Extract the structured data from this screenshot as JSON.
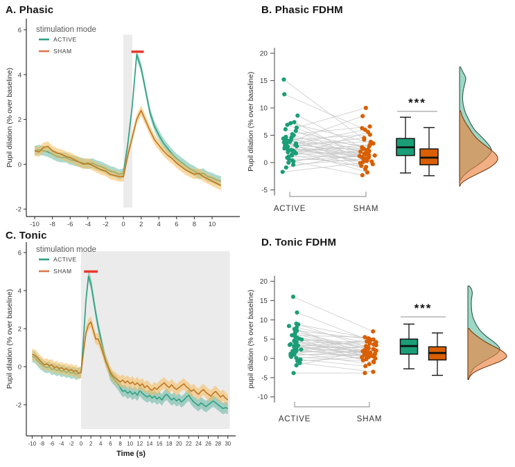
{
  "figure_colors": {
    "active": "#1b9e77",
    "sham": "#d95f02",
    "active_line": "#2fa183",
    "sham_line": "#bd7a26",
    "active_ribbon": "rgba(47,161,131,0.4)",
    "sham_ribbon": "rgba(248,185,88,0.55)",
    "active_density_fill": "rgba(77,183,150,0.55)",
    "sham_density_fill": "rgba(235,126,56,0.62)",
    "active_density_stroke": "#32584c",
    "sham_density_stroke": "#7c3a10",
    "significance_red": "#e8372c",
    "stimulus_band": "#e8e8e8",
    "pair_line": "#c7c7c7",
    "axis": "#2b2b2b",
    "tick_text": "#3c3c3c",
    "legend_title_text": "#595959",
    "sig_line_gray": "#b3b3b3"
  },
  "chart_data": [
    {
      "id": "A",
      "type": "line",
      "title": "A. Phasic",
      "xlabel": "Time (s)",
      "ylabel": "Pupil dilation (% over baseline)",
      "legend_title": "stimulation mode",
      "xticks": [
        -10,
        -8,
        -6,
        -4,
        -2,
        0,
        2,
        4,
        6,
        8,
        10
      ],
      "yticks": [
        -2,
        0,
        2,
        4,
        6
      ],
      "xlim": [
        -10.9,
        13.1
      ],
      "ylim": [
        -2.35,
        6.3
      ],
      "x_start": -10,
      "x_step": 0.5,
      "stim_band": {
        "x0": 0,
        "x1": 1,
        "vtop": 5.78,
        "vbot": -1.93
      },
      "sig_bar": {
        "x0": 0.9,
        "x1": 2.3,
        "y": 5.02
      },
      "series": [
        {
          "name": "ACTIVE",
          "ribbon": 0.22,
          "y": [
            0.6,
            0.65,
            0.6,
            0.55,
            0.45,
            0.35,
            0.3,
            0.3,
            0.2,
            0.15,
            0.1,
            0.05,
            0.0,
            0.05,
            -0.05,
            -0.1,
            -0.2,
            -0.3,
            -0.35,
            -0.45,
            -0.4,
            0.9,
            2.6,
            4.9,
            4.3,
            3.3,
            2.3,
            1.7,
            1.3,
            0.95,
            0.7,
            0.45,
            0.25,
            0.1,
            -0.05,
            -0.2,
            -0.3,
            -0.45,
            -0.4,
            -0.55,
            -0.6,
            -0.7,
            -0.75
          ]
        },
        {
          "name": "SHAM",
          "ribbon": 0.22,
          "y": [
            0.6,
            0.55,
            0.75,
            0.8,
            0.6,
            0.5,
            0.45,
            0.35,
            0.3,
            0.2,
            0.1,
            0.0,
            0.05,
            -0.05,
            -0.15,
            -0.25,
            -0.3,
            -0.45,
            -0.5,
            -0.55,
            -0.55,
            0.4,
            1.2,
            2.0,
            2.4,
            1.95,
            1.5,
            1.1,
            0.85,
            0.6,
            0.4,
            0.25,
            0.05,
            -0.1,
            -0.25,
            -0.35,
            -0.45,
            -0.4,
            -0.55,
            -0.65,
            -0.75,
            -0.85,
            -0.95
          ]
        }
      ]
    },
    {
      "id": "B",
      "type": "paired_raincloud",
      "title": "B. Phasic FDHM",
      "ylabel": "Pupil dilation (% over baseline)",
      "yticks": [
        -5,
        0,
        5,
        10,
        15,
        20
      ],
      "groups": [
        {
          "name": "ACTIVE",
          "values": [
            15.2,
            12.5,
            8.6,
            7.4,
            7.2,
            6.9,
            6.4,
            6.1,
            5.8,
            5.2,
            5.0,
            4.7,
            4.6,
            4.4,
            4.2,
            4.1,
            4.0,
            3.8,
            3.7,
            3.6,
            3.5,
            3.4,
            3.2,
            3.1,
            3.0,
            2.9,
            2.8,
            2.6,
            2.5,
            2.3,
            2.2,
            2.0,
            1.9,
            1.7,
            1.5,
            1.3,
            1.1,
            0.9,
            0.7,
            0.4,
            0.2,
            0.0,
            -0.4,
            -0.9,
            -1.7
          ],
          "box": {
            "lo": -1.9,
            "q1": 1.3,
            "med": 2.8,
            "q3": 4.4,
            "hi": 8.3
          },
          "density": [
            [
              17.5,
              1
            ],
            [
              16.5,
              4
            ],
            [
              15.5,
              7
            ],
            [
              14.5,
              6
            ],
            [
              13,
              4
            ],
            [
              11.5,
              3.5
            ],
            [
              10,
              5
            ],
            [
              9,
              7
            ],
            [
              8,
              10
            ],
            [
              7,
              13
            ],
            [
              6,
              17
            ],
            [
              5,
              23
            ],
            [
              4,
              29
            ],
            [
              3,
              34
            ],
            [
              2.2,
              36
            ],
            [
              1.5,
              34
            ],
            [
              0.5,
              28
            ],
            [
              -0.5,
              20
            ],
            [
              -1.5,
              11
            ],
            [
              -2.5,
              4
            ],
            [
              -3.2,
              1
            ]
          ]
        },
        {
          "name": "SHAM",
          "values": [
            4.2,
            6.3,
            2.1,
            0.8,
            3.5,
            1.6,
            10.0,
            2.8,
            0.3,
            6.6,
            1.2,
            3.0,
            -0.6,
            2.4,
            5.1,
            0.6,
            1.9,
            8.5,
            1.4,
            -1.2,
            3.8,
            0.1,
            2.2,
            6.0,
            1.0,
            -0.3,
            4.5,
            1.8,
            0.9,
            2.6,
            -1.8,
            1.5,
            3.3,
            0.4,
            2.0,
            -0.8,
            1.1,
            5.6,
            0.2,
            1.3,
            -2.3,
            2.5,
            0.7,
            1.7,
            -0.1
          ],
          "box": {
            "lo": -2.4,
            "q1": -0.4,
            "med": 0.9,
            "q3": 2.5,
            "hi": 6.4
          },
          "density": [
            [
              9.5,
              1
            ],
            [
              8.5,
              3
            ],
            [
              7.5,
              6
            ],
            [
              6.5,
              10
            ],
            [
              5.5,
              14
            ],
            [
              4.5,
              19
            ],
            [
              3.5,
              26
            ],
            [
              2.5,
              34
            ],
            [
              1.5,
              41
            ],
            [
              0.8,
              43
            ],
            [
              0,
              41
            ],
            [
              -1,
              33
            ],
            [
              -2,
              21
            ],
            [
              -3,
              9
            ],
            [
              -3.8,
              2
            ],
            [
              -4.3,
              0.5
            ]
          ]
        }
      ],
      "significance": "***"
    },
    {
      "id": "C",
      "type": "line",
      "title": "C. Tonic",
      "xlabel": "Time (s)",
      "ylabel": "Pupil dilation (% over baseline)",
      "legend_title": "stimulation mode",
      "xticks": [
        -10,
        -8,
        -6,
        -4,
        -2,
        0,
        2,
        4,
        6,
        8,
        10,
        12,
        14,
        16,
        18,
        20,
        22,
        24,
        26,
        28,
        30
      ],
      "yticks": [
        -2,
        0,
        2,
        4,
        6
      ],
      "xlim": [
        -11.2,
        31.6
      ],
      "ylim": [
        -3.64,
        6.35
      ],
      "x_start": -10,
      "x_step": 0.5,
      "stim_band": {
        "x0": 0,
        "x1": 30.4,
        "vtop": 6.07,
        "vbot": -3.27
      },
      "sig_bar": {
        "x0": 0.6,
        "x1": 3.4,
        "y": 5.0
      },
      "series": [
        {
          "name": "ACTIVE",
          "ribbon": 0.3,
          "y": [
            0.55,
            0.5,
            0.35,
            0.2,
            0.1,
            0.0,
            -0.05,
            0.0,
            -0.15,
            -0.1,
            -0.2,
            -0.15,
            -0.25,
            -0.2,
            -0.3,
            -0.25,
            -0.35,
            -0.3,
            -0.4,
            -0.35,
            -0.3,
            1.5,
            3.5,
            4.75,
            4.4,
            3.6,
            2.8,
            2.1,
            1.5,
            0.9,
            0.35,
            0.0,
            -0.45,
            -0.6,
            -0.75,
            -0.9,
            -1.1,
            -1.3,
            -1.25,
            -1.4,
            -1.3,
            -1.45,
            -1.35,
            -1.5,
            -1.25,
            -1.4,
            -1.5,
            -1.6,
            -1.5,
            -1.65,
            -1.55,
            -1.7,
            -1.6,
            -1.75,
            -1.55,
            -1.45,
            -1.6,
            -1.75,
            -1.65,
            -1.8,
            -1.7,
            -1.85,
            -1.75,
            -1.6,
            -1.5,
            -1.7,
            -1.85,
            -1.95,
            -2.05,
            -1.9,
            -2.0,
            -2.1,
            -2.0,
            -1.9,
            -1.8,
            -1.9,
            -2.0,
            -2.1,
            -2.2,
            -2.15,
            -2.2
          ]
        },
        {
          "name": "SHAM",
          "ribbon": 0.3,
          "y": [
            0.65,
            0.6,
            0.5,
            0.35,
            0.2,
            0.1,
            0.15,
            0.05,
            0.1,
            -0.05,
            0.0,
            -0.1,
            -0.05,
            -0.15,
            -0.1,
            -0.2,
            -0.15,
            -0.25,
            -0.2,
            -0.35,
            -0.3,
            0.8,
            1.8,
            2.2,
            2.35,
            1.9,
            1.45,
            1.45,
            1.1,
            0.7,
            0.3,
            0.0,
            -0.3,
            -0.5,
            -0.6,
            -0.7,
            -0.8,
            -0.7,
            -0.85,
            -0.75,
            -0.9,
            -0.8,
            -0.95,
            -0.85,
            -1.0,
            -0.9,
            -1.1,
            -1.0,
            -1.15,
            -1.25,
            -1.1,
            -1.2,
            -1.05,
            -0.95,
            -0.85,
            -1.0,
            -1.1,
            -0.95,
            -1.1,
            -1.2,
            -1.1,
            -1.0,
            -0.9,
            -1.05,
            -1.15,
            -1.3,
            -1.2,
            -1.35,
            -1.45,
            -1.3,
            -1.2,
            -1.35,
            -1.45,
            -1.55,
            -1.4,
            -1.3,
            -1.45,
            -1.6,
            -1.5,
            -1.65,
            -1.75
          ]
        }
      ]
    },
    {
      "id": "D",
      "type": "paired_raincloud",
      "title": "D. Tonic FDHM",
      "ylabel": "pupil dilation (% over baseline)",
      "yticks": [
        -10,
        -5,
        0,
        5,
        10,
        15,
        20
      ],
      "groups": [
        {
          "name": "ACTIVE",
          "values": [
            16.0,
            11.9,
            9.0,
            8.8,
            8.4,
            8.0,
            7.6,
            7.2,
            6.8,
            6.4,
            6.0,
            5.7,
            5.4,
            5.1,
            4.9,
            4.7,
            4.5,
            4.3,
            4.1,
            3.9,
            3.7,
            3.5,
            3.3,
            3.1,
            2.9,
            2.7,
            2.5,
            2.3,
            2.1,
            1.9,
            1.7,
            1.5,
            1.2,
            1.0,
            0.7,
            0.4,
            0.1,
            -0.3,
            -0.7,
            -1.2,
            -1.8,
            -3.8
          ],
          "box": {
            "lo": -2.7,
            "q1": 1.1,
            "med": 3.2,
            "q3": 5.0,
            "hi": 8.9
          },
          "density": [
            [
              18.8,
              1.5
            ],
            [
              18,
              4
            ],
            [
              17,
              5
            ],
            [
              16,
              4.5
            ],
            [
              15,
              4
            ],
            [
              13.5,
              4
            ],
            [
              12,
              4.5
            ],
            [
              10.5,
              6
            ],
            [
              9,
              9
            ],
            [
              7.5,
              13
            ],
            [
              6.5,
              17
            ],
            [
              5.5,
              22
            ],
            [
              4.5,
              28
            ],
            [
              3.5,
              33
            ],
            [
              2.5,
              36
            ],
            [
              1.5,
              34
            ],
            [
              0.5,
              28
            ],
            [
              -0.5,
              20
            ],
            [
              -1.5,
              13
            ],
            [
              -2.5,
              7
            ],
            [
              -3.5,
              4
            ],
            [
              -4.5,
              2
            ],
            [
              -5.5,
              1
            ]
          ]
        },
        {
          "name": "SHAM",
          "values": [
            7.0,
            4.6,
            2.4,
            5.2,
            1.0,
            3.6,
            0.2,
            4.9,
            2.0,
            1.5,
            5.5,
            0.6,
            3.2,
            -0.5,
            2.8,
            4.2,
            1.2,
            0.0,
            3.9,
            1.8,
            -1.0,
            2.6,
            0.8,
            4.4,
            1.4,
            3.0,
            -0.2,
            2.2,
            0.4,
            5.0,
            1.6,
            -1.5,
            3.4,
            0.9,
            2.1,
            -0.8,
            1.1,
            -2.0,
            0.3,
            -3.5,
            1.9,
            -3.8
          ],
          "box": {
            "lo": -4.4,
            "q1": -0.4,
            "med": 1.4,
            "q3": 3.0,
            "hi": 6.6
          },
          "density": [
            [
              7.8,
              1
            ],
            [
              7,
              4
            ],
            [
              6,
              9
            ],
            [
              5,
              15
            ],
            [
              4,
              22
            ],
            [
              3,
              30
            ],
            [
              2,
              38
            ],
            [
              1,
              43
            ],
            [
              0.2,
              43
            ],
            [
              -0.8,
              36
            ],
            [
              -1.8,
              25
            ],
            [
              -2.8,
              14
            ],
            [
              -3.8,
              6
            ],
            [
              -4.8,
              2
            ],
            [
              -5.5,
              0.5
            ]
          ]
        }
      ],
      "significance": "***"
    }
  ]
}
